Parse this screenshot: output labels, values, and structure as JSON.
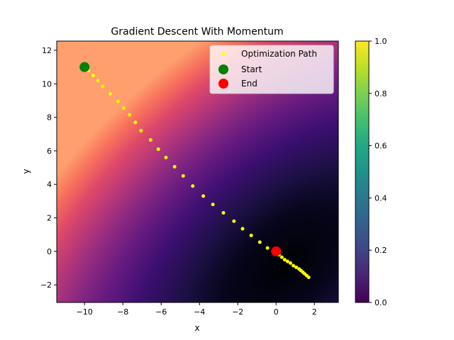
{
  "chart_data": {
    "type": "scatter",
    "title": "Gradient Descent With Momentum",
    "xlabel": "x",
    "ylabel": "y",
    "xlim": [
      -11.45,
      3.25
    ],
    "ylim": [
      -3.05,
      12.55
    ],
    "xticks": [
      -10,
      -8,
      -6,
      -4,
      -2,
      0,
      2
    ],
    "yticks": [
      -2,
      0,
      2,
      4,
      6,
      8,
      10,
      12
    ],
    "grid": false,
    "legend_position": "top-right",
    "background": "filled-contour (magma colormap), minimum near (0.5, -0.8)",
    "series": [
      {
        "name": "Optimization Path",
        "marker": "point",
        "color": "#ffff00",
        "points": [
          [
            -9.8,
            10.8
          ],
          [
            -9.55,
            10.5
          ],
          [
            -9.3,
            10.2
          ],
          [
            -9.05,
            9.85
          ],
          [
            -8.65,
            9.4
          ],
          [
            -8.25,
            8.95
          ],
          [
            -7.95,
            8.55
          ],
          [
            -7.65,
            8.15
          ],
          [
            -7.35,
            7.7
          ],
          [
            -7.05,
            7.2
          ],
          [
            -6.55,
            6.65
          ],
          [
            -6.15,
            6.1
          ],
          [
            -5.75,
            5.6
          ],
          [
            -5.3,
            5.05
          ],
          [
            -4.85,
            4.5
          ],
          [
            -4.35,
            3.9
          ],
          [
            -3.8,
            3.3
          ],
          [
            -3.3,
            2.8
          ],
          [
            -2.75,
            2.3
          ],
          [
            -2.2,
            1.8
          ],
          [
            -1.75,
            1.35
          ],
          [
            -1.3,
            0.95
          ],
          [
            -0.85,
            0.55
          ],
          [
            -0.45,
            0.2
          ],
          [
            -0.05,
            0.0
          ],
          [
            0.15,
            -0.2
          ],
          [
            0.3,
            -0.35
          ],
          [
            0.45,
            -0.5
          ],
          [
            0.6,
            -0.6
          ],
          [
            0.75,
            -0.7
          ],
          [
            0.9,
            -0.85
          ],
          [
            1.05,
            -0.95
          ],
          [
            1.2,
            -1.05
          ],
          [
            1.3,
            -1.15
          ],
          [
            1.4,
            -1.25
          ],
          [
            1.5,
            -1.35
          ],
          [
            1.6,
            -1.45
          ],
          [
            1.7,
            -1.55
          ]
        ]
      },
      {
        "name": "Start",
        "color": "#008000",
        "points": [
          [
            -10.0,
            11.0
          ]
        ]
      },
      {
        "name": "End",
        "color": "#ff0000",
        "points": [
          [
            0.0,
            0.0
          ]
        ]
      }
    ],
    "colorbar": {
      "min": 0.0,
      "max": 1.0,
      "ticks": [
        "0.0",
        "0.2",
        "0.4",
        "0.6",
        "0.8",
        "1.0"
      ],
      "colormap": "viridis"
    }
  }
}
